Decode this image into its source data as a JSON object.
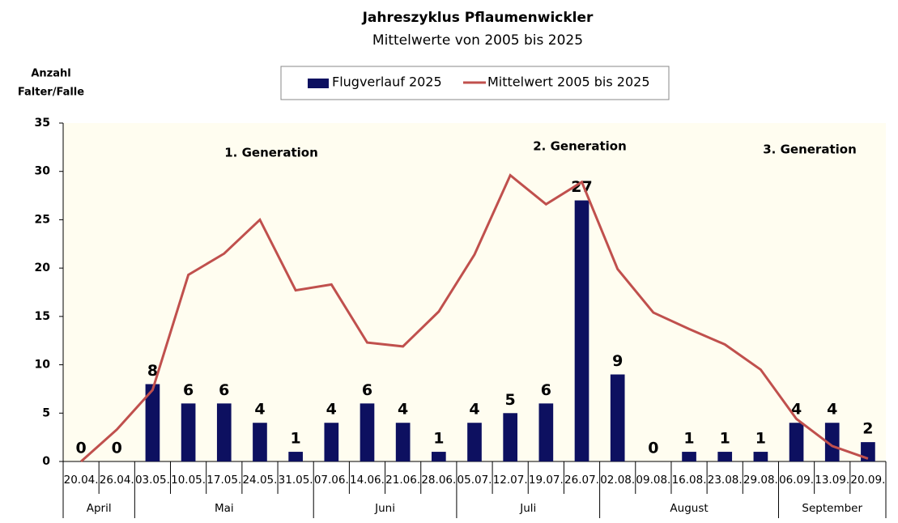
{
  "chart_data": {
    "type": "bar",
    "title": "Jahreszyklus Pflaumenwickler",
    "subtitle": "Mittelwerte von 2005 bis 2025",
    "ylabel": [
      "Anzahl",
      "Falter/Falle"
    ],
    "categories": [
      "20.04.",
      "26.04.",
      "03.05.",
      "10.05.",
      "17.05.",
      "24.05.",
      "31.05.",
      "07.06.",
      "14.06.",
      "21.06.",
      "28.06.",
      "05.07.",
      "12.07.",
      "19.07.",
      "26.07.",
      "02.08.",
      "09.08.",
      "16.08.",
      "23.08.",
      "29.08.",
      "06.09.",
      "13.09.",
      "20.09."
    ],
    "months": [
      "April",
      "Mai",
      "Juni",
      "Juli",
      "August",
      "September"
    ],
    "series": [
      {
        "name": "Flugverlauf 2025",
        "type": "bar",
        "color": "#0d1060",
        "values": [
          0,
          0,
          8,
          6,
          6,
          4,
          1,
          4,
          6,
          4,
          1,
          4,
          5,
          6,
          27,
          9,
          0,
          1,
          1,
          1,
          4,
          4,
          2
        ]
      },
      {
        "name": "Mittelwert 2005 bis 2025",
        "type": "line",
        "color": "#c0504d",
        "values": [
          0,
          3.3,
          7.4,
          19.3,
          21.5,
          25,
          17.7,
          18.3,
          12.3,
          11.9,
          15.5,
          21.4,
          29.6,
          26.6,
          28.9,
          19.9,
          15.4,
          13.7,
          12.1,
          9.5,
          4.4,
          1.6,
          0.3
        ]
      }
    ],
    "annotations": [
      "1. Generation",
      "2. Generation",
      "3. Generation"
    ],
    "ylim": [
      0,
      35
    ],
    "yticks": [
      0,
      5,
      10,
      15,
      20,
      25,
      30,
      35
    ],
    "grid": false,
    "legend": "top"
  }
}
